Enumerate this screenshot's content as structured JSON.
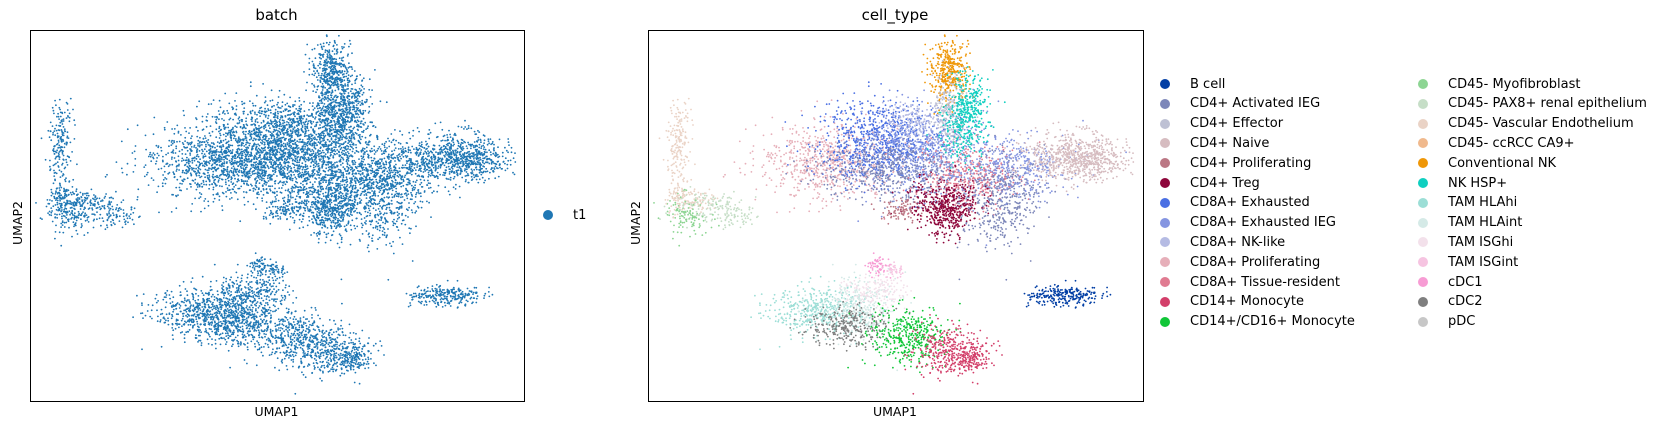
{
  "chart_data": [
    {
      "type": "scatter",
      "title": "batch",
      "xlabel": "UMAP1",
      "ylabel": "UMAP2",
      "ticks": "none",
      "grid": false,
      "legend": "right",
      "series": [
        {
          "name": "t1",
          "color": "#1f77b4"
        }
      ]
    },
    {
      "type": "scatter",
      "title": "cell_type",
      "xlabel": "UMAP1",
      "ylabel": "UMAP2",
      "ticks": "none",
      "grid": false,
      "legend": "right, two columns",
      "series": [
        {
          "name": "B cell",
          "color": "#023fa5"
        },
        {
          "name": "CD4+ Activated IEG",
          "color": "#7d87b9"
        },
        {
          "name": "CD4+ Effector",
          "color": "#bec1d4"
        },
        {
          "name": "CD4+ Naive",
          "color": "#d6bcc0"
        },
        {
          "name": "CD4+ Proliferating",
          "color": "#bb7784"
        },
        {
          "name": "CD4+ Treg",
          "color": "#8e063b"
        },
        {
          "name": "CD8A+ Exhausted",
          "color": "#4a6fe3"
        },
        {
          "name": "CD8A+ Exhausted IEG",
          "color": "#8595e1"
        },
        {
          "name": "CD8A+ NK-like",
          "color": "#b5bbe3"
        },
        {
          "name": "CD8A+ Proliferating",
          "color": "#e6afb9"
        },
        {
          "name": "CD8A+ Tissue-resident",
          "color": "#e07b91"
        },
        {
          "name": "CD14+ Monocyte",
          "color": "#d33f6a"
        },
        {
          "name": "CD14+/CD16+ Monocyte",
          "color": "#11c638"
        },
        {
          "name": "CD45- Myofibroblast",
          "color": "#8dd593"
        },
        {
          "name": "CD45- PAX8+ renal epithelium",
          "color": "#c6dec7"
        },
        {
          "name": "CD45- Vascular Endothelium",
          "color": "#ead3c6"
        },
        {
          "name": "CD45- ccRCC CA9+",
          "color": "#f0b98d"
        },
        {
          "name": "Conventional NK",
          "color": "#ef9708"
        },
        {
          "name": "NK HSP+",
          "color": "#0fcfc0"
        },
        {
          "name": "TAM HLAhi",
          "color": "#9cded6"
        },
        {
          "name": "TAM HLAint",
          "color": "#d5eae7"
        },
        {
          "name": "TAM ISGhi",
          "color": "#f3e1eb"
        },
        {
          "name": "TAM ISGint",
          "color": "#f6c4e1"
        },
        {
          "name": "cDC1",
          "color": "#f79cd4"
        },
        {
          "name": "cDC2",
          "color": "#7f7f7f"
        },
        {
          "name": "pDC",
          "color": "#c7c7c7"
        }
      ]
    }
  ]
}
